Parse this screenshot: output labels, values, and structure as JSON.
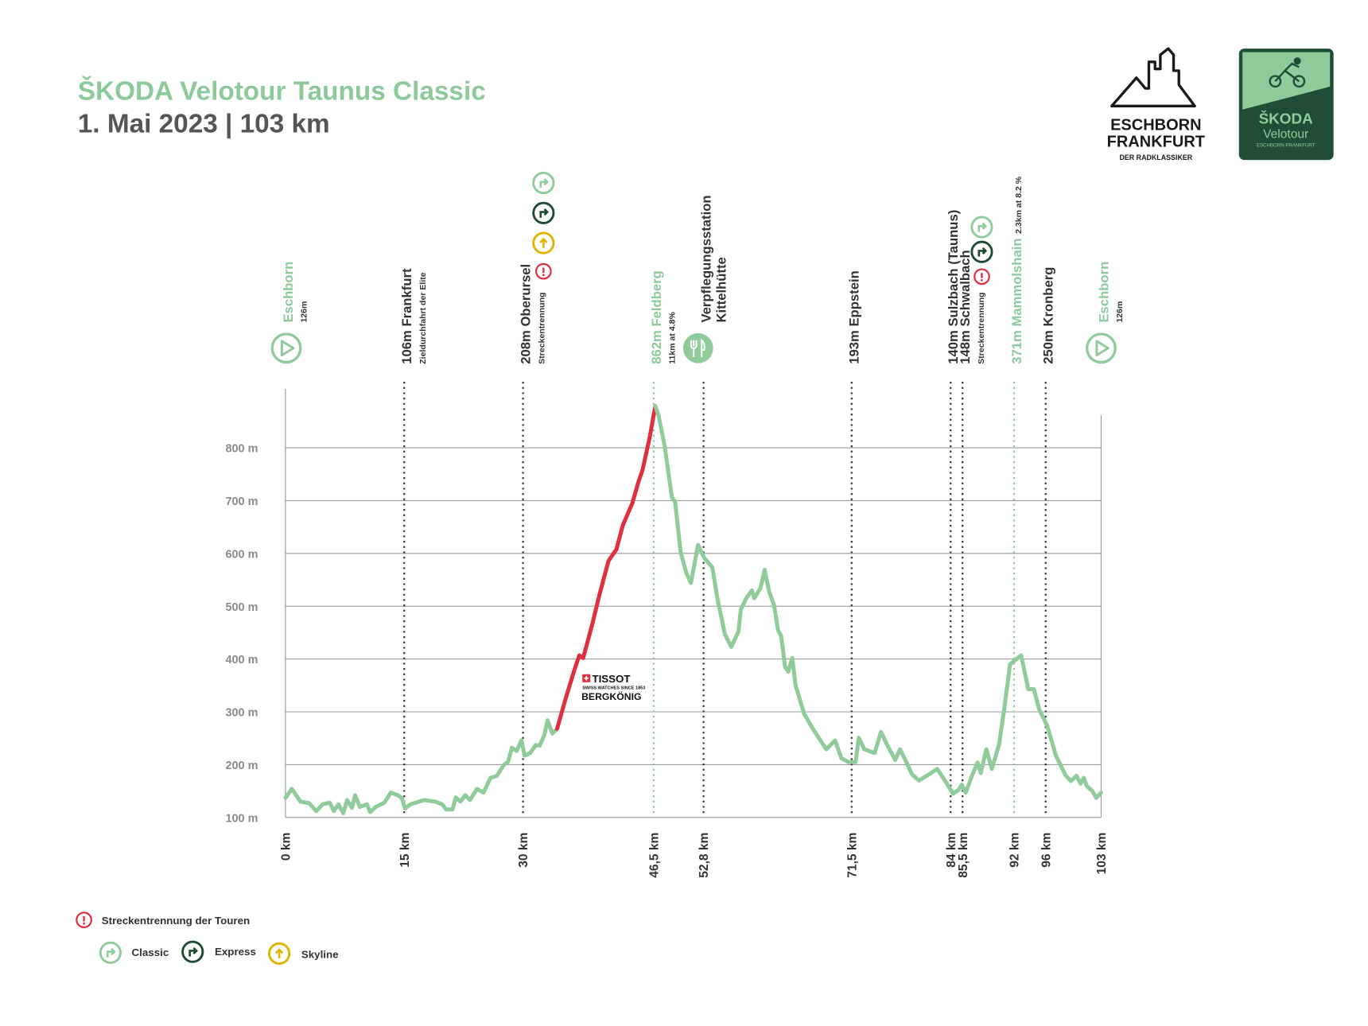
{
  "chart_data": {
    "type": "line",
    "title": "ŠKODA Velotour Taunus Classic",
    "subtitle": "1. Mai 2023 | 103 km",
    "xlim": [
      0,
      103
    ],
    "ylim": [
      100,
      900
    ],
    "xticks": [
      {
        "value": 0,
        "label": "0 km"
      },
      {
        "value": 15,
        "label": "15 km"
      },
      {
        "value": 30,
        "label": "30 km"
      },
      {
        "value": 46.5,
        "label": "46,5 km"
      },
      {
        "value": 52.8,
        "label": "52,8 km"
      },
      {
        "value": 71.5,
        "label": "71,5 km"
      },
      {
        "value": 84,
        "label": "84 km"
      },
      {
        "value": 85.5,
        "label": "85,5 km"
      },
      {
        "value": 92,
        "label": "92 km"
      },
      {
        "value": 96,
        "label": "96 km"
      },
      {
        "value": 103,
        "label": "103 km"
      }
    ],
    "yticks": [
      {
        "value": 100,
        "label": "100 m"
      },
      {
        "value": 200,
        "label": "200 m"
      },
      {
        "value": 300,
        "label": "300 m"
      },
      {
        "value": 400,
        "label": "400 m"
      },
      {
        "value": 500,
        "label": "500 m"
      },
      {
        "value": 600,
        "label": "600 m"
      },
      {
        "value": 700,
        "label": "700 m"
      },
      {
        "value": 800,
        "label": "800 m"
      }
    ],
    "grid": true,
    "series": [
      {
        "color": "#8fcb9b",
        "x": [
          0,
          0.8,
          1.9,
          3,
          3.9,
          4.7,
          5.6,
          6.1,
          6.7,
          7.3,
          7.8,
          8.4,
          8.8,
          9.4,
          10.3,
          10.7,
          11.4,
          12.5,
          13.3,
          14.2,
          14.7,
          15.1,
          15.8,
          17.5,
          18.9,
          19.8,
          20.3,
          21.1,
          21.5,
          22.1,
          22.7,
          23.3,
          24.2,
          25,
          25.9,
          26.7,
          27.6,
          28.1,
          28.6,
          29.2,
          29.8,
          30.2,
          30.9,
          31.6,
          32.1,
          32.7,
          33.1,
          33.7,
          34.3
        ],
        "values": [
          137,
          154,
          130,
          127,
          112,
          125,
          128,
          112,
          125,
          108,
          133,
          118,
          142,
          120,
          125,
          110,
          120,
          128,
          147,
          142,
          137,
          117,
          125,
          133,
          130,
          125,
          115,
          115,
          138,
          130,
          142,
          133,
          154,
          147,
          175,
          179,
          200,
          205,
          232,
          226,
          246,
          217,
          222,
          237,
          236,
          256,
          284,
          259,
          268
        ]
      },
      {
        "color": "#e0303f",
        "x": [
          34.3,
          35.4,
          36.5,
          37.1,
          37.6,
          38.8,
          39.6,
          40.8,
          41.8,
          42.6,
          43.8,
          44.6,
          45.1,
          46,
          46.7
        ],
        "values": [
          268,
          326,
          380,
          407,
          402,
          469,
          519,
          586,
          608,
          653,
          695,
          737,
          758,
          820,
          879
        ]
      },
      {
        "color": "#8fcb9b",
        "x": [
          46.7,
          47.1,
          47.9,
          48.8,
          49.2,
          49.9,
          50.6,
          51.2,
          52.1,
          52.9,
          53.9,
          54.6,
          55.5,
          56.3,
          57.2,
          57.5,
          58.2,
          58.9,
          59.2,
          60,
          60.5,
          61.1,
          61.7,
          62.2,
          62.6,
          63.1,
          63.5,
          64,
          64.4,
          65.5,
          66.6,
          68.3,
          69.4,
          70.2,
          71.1,
          72,
          72.4,
          73.1,
          74.4,
          75.2,
          76.1,
          77,
          77.6,
          78.4,
          79.1,
          80,
          81.1,
          82.3,
          83.4,
          84.3,
          85,
          85.4,
          85.9,
          86.7,
          87.4,
          87.8,
          88.5,
          89.2,
          90.1,
          90.8,
          91.5,
          92.9,
          93.8,
          94.5,
          95.2,
          96.2,
          97.3,
          98.5,
          99.2,
          99.9,
          100.4,
          100.8,
          101.2,
          101.9,
          102.4,
          103
        ],
        "values": [
          879,
          862,
          803,
          706,
          698,
          603,
          564,
          544,
          616,
          591,
          574,
          510,
          447,
          423,
          452,
          494,
          515,
          530,
          515,
          535,
          569,
          527,
          502,
          455,
          443,
          385,
          376,
          402,
          351,
          296,
          268,
          229,
          246,
          212,
          205,
          205,
          251,
          229,
          222,
          262,
          234,
          209,
          229,
          205,
          182,
          170,
          180,
          192,
          167,
          145,
          152,
          162,
          147,
          179,
          204,
          184,
          229,
          192,
          237,
          309,
          390,
          407,
          343,
          343,
          304,
          273,
          217,
          180,
          169,
          179,
          164,
          175,
          159,
          150,
          137,
          147
        ]
      }
    ],
    "waypoints": [
      {
        "km": 0,
        "labels": [
          "Eschborn"
        ],
        "note": "126m",
        "color": "#8cc99b",
        "line": false
      },
      {
        "km": 15,
        "labels": [
          "106m Frankfurt"
        ],
        "note": "Zieldurchfahrt der Elite",
        "color": "#333333",
        "line": true
      },
      {
        "km": 30,
        "labels": [
          "208m Oberursel"
        ],
        "note": "Streckentrennung",
        "color": "#333333",
        "line": true
      },
      {
        "km": 46.5,
        "labels": [
          "862m Feldberg"
        ],
        "note": "11km at 4.8%",
        "color": "#8cc99b",
        "line": true
      },
      {
        "km": 52.8,
        "labels": [
          "Verpflegungsstation",
          "Kittelhütte"
        ],
        "color": "#333333",
        "line": true
      },
      {
        "km": 71.5,
        "labels": [
          "193m Eppstein"
        ],
        "color": "#333333",
        "line": true
      },
      {
        "km": 84,
        "labels": [
          "140m Sulzbach (Taunus)"
        ],
        "color": "#333333",
        "line": true
      },
      {
        "km": 85.5,
        "labels": [
          "148m Schwalbach"
        ],
        "note": "Streckentrennung",
        "color": "#333333",
        "line": true
      },
      {
        "km": 92,
        "labels": [
          "371m Mammolshain"
        ],
        "note": "2.3km at 8.2 %",
        "note_inline": true,
        "color": "#8cc99b",
        "line": true
      },
      {
        "km": 96,
        "labels": [
          "250m Kronberg"
        ],
        "color": "#333333",
        "line": true
      },
      {
        "km": 103,
        "labels": [
          "Eschborn"
        ],
        "note": "126m",
        "color": "#8cc99b",
        "line": false
      }
    ],
    "sponsor": {
      "brand": "TISSOT",
      "tagline": "SWISS WATCHES SINCE 1853",
      "title": "BERGKÖNIG"
    },
    "legend": {
      "split": "Streckentrennung der Touren",
      "routes": [
        "Classic",
        "Express",
        "Skyline"
      ]
    }
  },
  "logos": {
    "race": [
      "ESCHBORN",
      "FRANKFURT",
      "DER RADKLASSIKER"
    ],
    "tour": [
      "ŠKODA",
      "Velotour",
      "ESCHBORN-FRANKFURT"
    ]
  }
}
